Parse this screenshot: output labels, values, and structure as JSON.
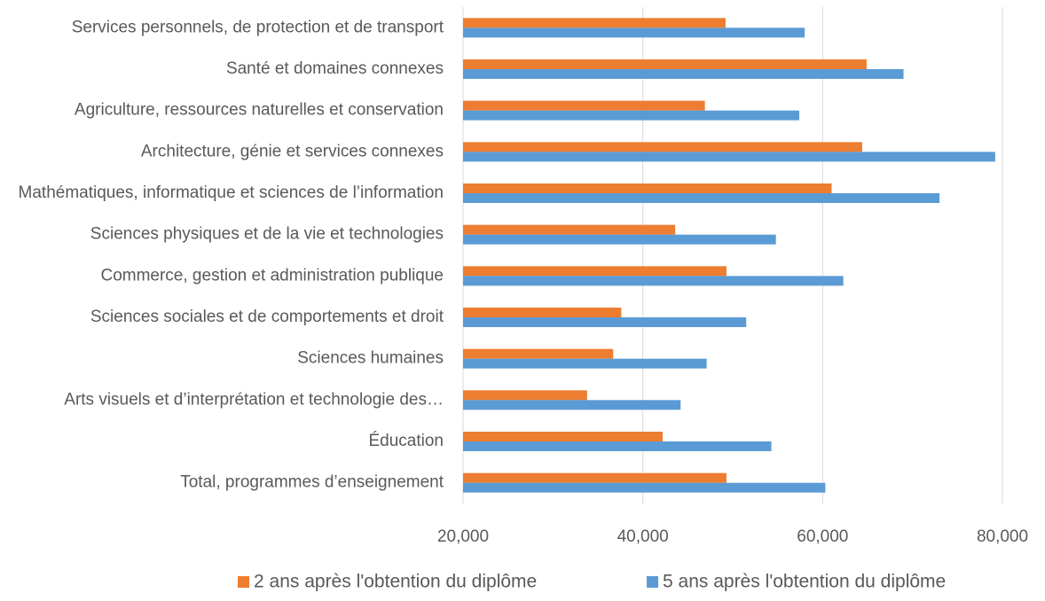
{
  "chart_data": {
    "type": "hbar",
    "categories": [
      "Services personnels, de protection et de transport",
      "Santé et domaines connexes",
      "Agriculture, ressources naturelles et conservation",
      "Architecture, génie et services connexes",
      "Mathématiques, informatique et sciences de l’information",
      "Sciences physiques et de la vie et technologies",
      "Commerce, gestion et administration publique",
      "Sciences sociales et de comportements et droit",
      "Sciences humaines",
      "Arts visuels et d’interprétation et technologie des…",
      "Éducation",
      "Total, programmes d’enseignement"
    ],
    "series": [
      {
        "name": "2 ans après l'obtention du diplôme",
        "color": "#ed7d31",
        "values": [
          49200,
          64900,
          46900,
          64400,
          61000,
          43600,
          49300,
          37600,
          36700,
          33800,
          42200,
          49300
        ]
      },
      {
        "name": "5 ans après l'obtention du diplôme",
        "color": "#5b9bd5",
        "values": [
          58000,
          69000,
          57400,
          79200,
          73000,
          54800,
          62300,
          51500,
          47100,
          44200,
          54300,
          60300
        ]
      }
    ],
    "xlim": [
      20000,
      80000
    ],
    "xticks": [
      {
        "value": 20000,
        "label": "20,000"
      },
      {
        "value": 40000,
        "label": "40,000"
      },
      {
        "value": 60000,
        "label": "60,000"
      },
      {
        "value": 80000,
        "label": "80,000"
      }
    ],
    "grid": true,
    "legend": "bottom"
  }
}
